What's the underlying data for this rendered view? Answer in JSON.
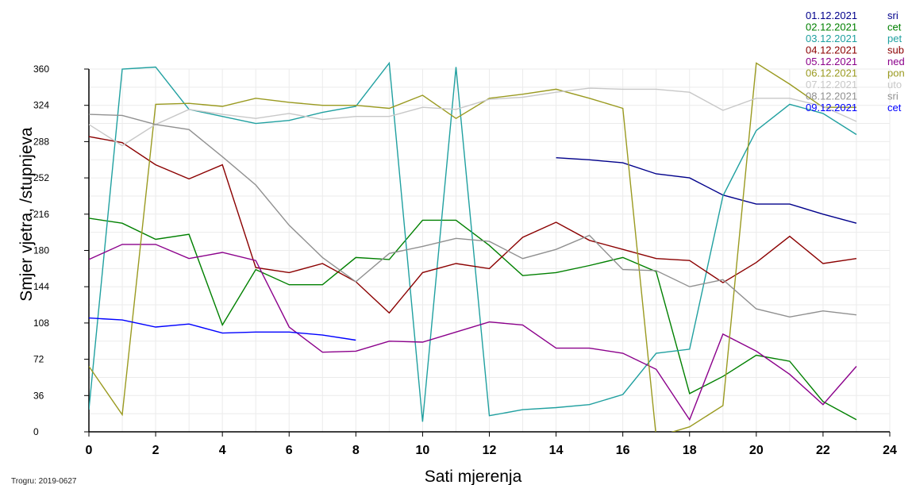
{
  "chart_data": {
    "type": "line",
    "xlabel": "Sati mjerenja",
    "ylabel": "Smjer vjetra, /stupnjeva",
    "xlim": [
      0,
      24
    ],
    "ylim": [
      0,
      360
    ],
    "x_ticks": [
      0,
      2,
      4,
      6,
      8,
      10,
      12,
      14,
      16,
      18,
      20,
      22,
      24
    ],
    "y_ticks": [
      0,
      36,
      72,
      108,
      144,
      180,
      216,
      252,
      288,
      324,
      360
    ],
    "grid": true,
    "legend_position": "top-right",
    "footer": "Trogru: 2019-0627",
    "series": [
      {
        "name": "01.12.2021",
        "day": "sri",
        "color": "#00008b",
        "x": [
          14,
          15,
          16,
          17,
          18,
          19,
          20,
          21,
          22,
          23
        ],
        "y": [
          272,
          270,
          267,
          256,
          252,
          235,
          226,
          226,
          216,
          207
        ]
      },
      {
        "name": "02.12.2021",
        "day": "cet",
        "color": "#008000",
        "x": [
          0,
          1,
          2,
          3,
          4,
          5,
          6,
          7,
          8,
          9,
          10,
          11,
          12,
          13,
          14,
          15,
          16,
          17,
          18,
          19,
          20,
          21,
          22,
          23
        ],
        "y": [
          212,
          207,
          191,
          196,
          106,
          161,
          146,
          146,
          173,
          171,
          210,
          210,
          185,
          155,
          158,
          165,
          173,
          159,
          38,
          55,
          76,
          70,
          30,
          12
        ]
      },
      {
        "name": "03.12.2021",
        "day": "pet",
        "color": "#20a0a0",
        "x": [
          0,
          1,
          2,
          3,
          4,
          5,
          6,
          7,
          8,
          9,
          10,
          11,
          12,
          13,
          14,
          15,
          16,
          17,
          18,
          19,
          20,
          21,
          22,
          23
        ],
        "y": [
          22,
          360,
          362,
          320,
          313,
          306,
          309,
          317,
          323,
          366,
          10,
          362,
          16,
          22,
          24,
          27,
          37,
          78,
          82,
          234,
          299,
          325,
          316,
          295
        ]
      },
      {
        "name": "04.12.2021",
        "day": "sub",
        "color": "#8b0000",
        "x": [
          0,
          1,
          2,
          3,
          4,
          5,
          6,
          7,
          8,
          9,
          10,
          11,
          12,
          13,
          14,
          15,
          16,
          17,
          18,
          19,
          20,
          21,
          22,
          23
        ],
        "y": [
          293,
          287,
          265,
          251,
          265,
          163,
          158,
          167,
          149,
          118,
          158,
          167,
          162,
          193,
          208,
          190,
          181,
          172,
          170,
          148,
          168,
          194,
          167,
          172
        ]
      },
      {
        "name": "05.12.2021",
        "day": "ned",
        "color": "#8b008b",
        "x": [
          0,
          1,
          2,
          3,
          4,
          5,
          6,
          7,
          8,
          9,
          10,
          11,
          12,
          13,
          14,
          15,
          16,
          17,
          18,
          19,
          20,
          21,
          22,
          23
        ],
        "y": [
          171,
          186,
          186,
          172,
          178,
          170,
          104,
          79,
          80,
          90,
          89,
          99,
          109,
          106,
          83,
          83,
          78,
          62,
          12,
          97,
          80,
          57,
          27,
          65
        ]
      },
      {
        "name": "06.12.2021",
        "day": "pon",
        "color": "#9a9a20",
        "x": [
          0,
          1,
          2,
          3,
          4,
          5,
          6,
          7,
          8,
          9,
          10,
          11,
          12,
          13,
          14,
          15,
          16,
          17,
          18,
          19,
          20,
          21,
          22,
          23
        ],
        "y": [
          65,
          17,
          325,
          326,
          323,
          331,
          327,
          324,
          324,
          321,
          334,
          311,
          331,
          335,
          340,
          331,
          321,
          -5,
          5,
          26,
          366,
          345,
          322,
          322
        ]
      },
      {
        "name": "07.12.2021",
        "day": "uto",
        "color": "#c8c8c8",
        "x": [
          0,
          1,
          2,
          3,
          4,
          5,
          6,
          7,
          8,
          9,
          10,
          11,
          12,
          13,
          14,
          15,
          16,
          17,
          18,
          19,
          20,
          21,
          22,
          23
        ],
        "y": [
          305,
          284,
          305,
          320,
          315,
          311,
          316,
          310,
          313,
          313,
          322,
          320,
          330,
          332,
          337,
          341,
          340,
          340,
          337,
          319,
          331,
          331,
          323,
          308
        ]
      },
      {
        "name": "08.12.2021",
        "day": "sri",
        "color": "#909090",
        "x": [
          0,
          1,
          2,
          3,
          4,
          5,
          6,
          7,
          8,
          9,
          10,
          11,
          12,
          13,
          14,
          15,
          16,
          17,
          18,
          19,
          20,
          21,
          22,
          23
        ],
        "y": [
          315,
          314,
          305,
          300,
          273,
          245,
          205,
          173,
          149,
          177,
          184,
          192,
          189,
          172,
          181,
          195,
          161,
          160,
          144,
          151,
          122,
          114,
          120,
          116
        ]
      },
      {
        "name": "09.12.2021",
        "day": "cet",
        "color": "#0000ff",
        "x": [
          0,
          1,
          2,
          3,
          4,
          5,
          6,
          7,
          8
        ],
        "y": [
          113,
          111,
          104,
          107,
          98,
          99,
          99,
          96,
          91
        ]
      }
    ]
  }
}
